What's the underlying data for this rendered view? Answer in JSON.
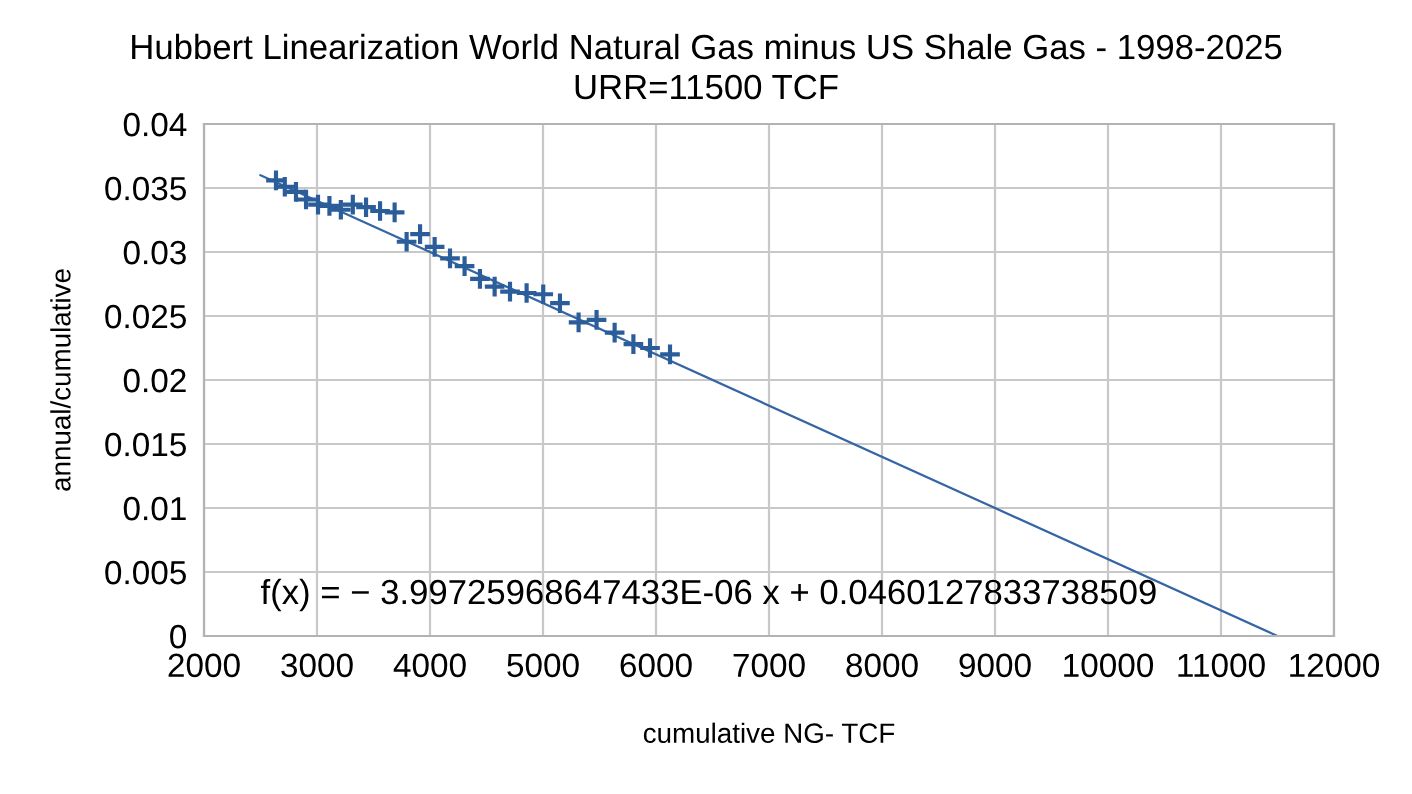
{
  "chart_data": {
    "type": "scatter",
    "title": "Hubbert Linearization World Natural Gas minus US Shale Gas - 1998-2025",
    "subtitle": "URR=11500 TCF",
    "xlabel": "cumulative NG- TCF",
    "ylabel": "annual/cumulative",
    "annotations": [
      "f(x) = − 3.99725968647433E-06 x + 0.0460127833738509"
    ],
    "series": [
      {
        "color": "#2a5d9a",
        "marker": "cross",
        "x": [
          2637,
          2715,
          2814,
          2903,
          3009,
          3110,
          3211,
          3317,
          3434,
          3558,
          3687,
          3793,
          3912,
          4041,
          4177,
          4306,
          4442,
          4572,
          4708,
          4855,
          5002,
          5150,
          5315,
          5474,
          5634,
          5800,
          5947,
          6124
        ],
        "values": [
          0.0356,
          0.0351,
          0.0347,
          0.0341,
          0.0337,
          0.0336,
          0.0333,
          0.0337,
          0.0335,
          0.0332,
          0.0331,
          0.0308,
          0.0314,
          0.0304,
          0.0295,
          0.0289,
          0.0279,
          0.0273,
          0.0269,
          0.0268,
          0.0267,
          0.026,
          0.0245,
          0.0247,
          0.0237,
          0.0228,
          0.0225,
          0.022
        ]
      },
      {
        "type": "line",
        "color": "#3465a4",
        "x": [
          2500,
          11500
        ],
        "values": [
          0.036,
          0.0
        ]
      }
    ],
    "xlim": [
      2000,
      12000
    ],
    "xticks": [
      2000,
      3000,
      4000,
      5000,
      6000,
      7000,
      8000,
      9000,
      10000,
      11000,
      12000
    ],
    "ylim": [
      0,
      0.04
    ],
    "yticks": [
      0,
      0.005,
      0.01,
      0.015,
      0.02,
      0.025,
      0.03,
      0.035,
      0.04
    ],
    "grid": true,
    "legend": false
  }
}
